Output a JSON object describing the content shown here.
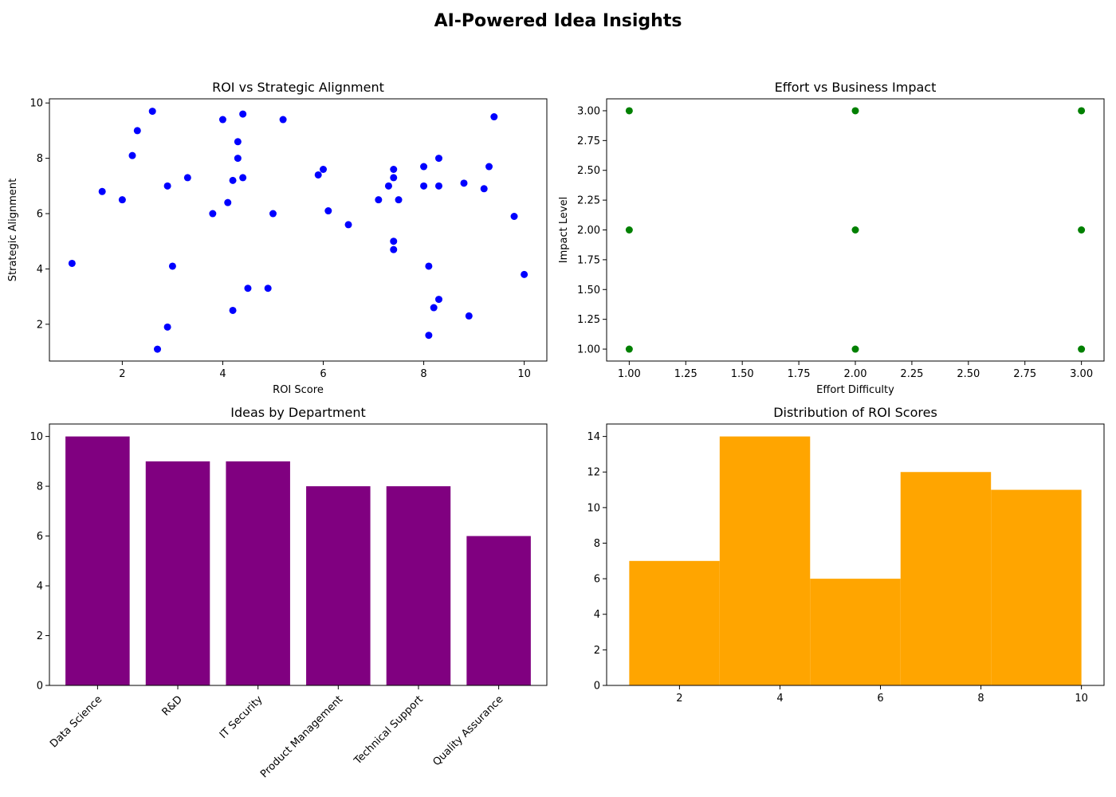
{
  "figure": {
    "title": "AI-Powered Idea Insights"
  },
  "chart_data": [
    {
      "type": "scatter",
      "title": "ROI vs Strategic Alignment",
      "xlabel": "ROI Score",
      "ylabel": "Strategic Alignment",
      "xlim": [
        0.55,
        10.45
      ],
      "ylim": [
        0.67,
        10.15
      ],
      "xticks": [
        2,
        4,
        6,
        8,
        10
      ],
      "yticks": [
        2,
        4,
        6,
        8,
        10
      ],
      "color": "#0000ff",
      "points": [
        [
          1.0,
          4.2
        ],
        [
          1.6,
          6.8
        ],
        [
          2.0,
          6.5
        ],
        [
          2.2,
          8.1
        ],
        [
          2.3,
          9.0
        ],
        [
          2.6,
          9.7
        ],
        [
          2.7,
          1.1
        ],
        [
          2.9,
          1.9
        ],
        [
          2.9,
          7.0
        ],
        [
          3.0,
          4.1
        ],
        [
          3.3,
          7.3
        ],
        [
          3.8,
          6.0
        ],
        [
          4.0,
          9.4
        ],
        [
          4.1,
          6.4
        ],
        [
          4.2,
          2.5
        ],
        [
          4.2,
          7.2
        ],
        [
          4.3,
          8.6
        ],
        [
          4.3,
          8.0
        ],
        [
          4.4,
          9.6
        ],
        [
          4.4,
          7.3
        ],
        [
          4.5,
          3.3
        ],
        [
          4.9,
          3.3
        ],
        [
          5.0,
          6.0
        ],
        [
          5.2,
          9.4
        ],
        [
          5.9,
          7.4
        ],
        [
          6.0,
          7.6
        ],
        [
          6.1,
          6.1
        ],
        [
          6.5,
          5.6
        ],
        [
          7.1,
          6.5
        ],
        [
          7.3,
          7.0
        ],
        [
          7.4,
          7.6
        ],
        [
          7.4,
          7.3
        ],
        [
          7.4,
          5.0
        ],
        [
          7.4,
          4.7
        ],
        [
          7.5,
          6.5
        ],
        [
          8.0,
          7.7
        ],
        [
          8.0,
          7.0
        ],
        [
          8.1,
          4.1
        ],
        [
          8.1,
          1.6
        ],
        [
          8.2,
          2.6
        ],
        [
          8.3,
          8.0
        ],
        [
          8.3,
          7.0
        ],
        [
          8.3,
          2.9
        ],
        [
          8.8,
          7.1
        ],
        [
          8.9,
          2.3
        ],
        [
          9.2,
          6.9
        ],
        [
          9.3,
          7.7
        ],
        [
          9.4,
          9.5
        ],
        [
          9.8,
          5.9
        ],
        [
          10.0,
          3.8
        ]
      ]
    },
    {
      "type": "scatter",
      "title": "Effort vs Business Impact",
      "xlabel": "Effort Difficulty",
      "ylabel": "Impact Level",
      "xlim": [
        0.9,
        3.1
      ],
      "ylim": [
        0.9,
        3.1
      ],
      "xticks": [
        "1.00",
        "1.25",
        "1.50",
        "1.75",
        "2.00",
        "2.25",
        "2.50",
        "2.75",
        "3.00"
      ],
      "yticks": [
        "1.00",
        "1.25",
        "1.50",
        "1.75",
        "2.00",
        "2.25",
        "2.50",
        "2.75",
        "3.00"
      ],
      "color": "#008000",
      "points": [
        [
          1,
          1
        ],
        [
          1,
          2
        ],
        [
          1,
          3
        ],
        [
          2,
          1
        ],
        [
          2,
          2
        ],
        [
          2,
          3
        ],
        [
          3,
          1
        ],
        [
          3,
          2
        ],
        [
          3,
          3
        ]
      ]
    },
    {
      "type": "bar",
      "title": "Ideas by Department",
      "categories": [
        "Data Science",
        "R&D",
        "IT Security",
        "Product Management",
        "Technical Support",
        "Quality Assurance"
      ],
      "values": [
        10,
        9,
        9,
        8,
        8,
        6
      ],
      "ylim": [
        0,
        10.5
      ],
      "yticks": [
        0,
        2,
        4,
        6,
        8,
        10
      ],
      "color": "#800080"
    },
    {
      "type": "histogram",
      "title": "Distribution of ROI Scores",
      "bin_edges": [
        1.0,
        2.8,
        4.6,
        6.4,
        8.2,
        10.0
      ],
      "counts": [
        7,
        14,
        6,
        12,
        11
      ],
      "xlim": [
        0.55,
        10.45
      ],
      "ylim": [
        0,
        14.7
      ],
      "xticks": [
        2,
        4,
        6,
        8,
        10
      ],
      "yticks": [
        0,
        2,
        4,
        6,
        8,
        10,
        12,
        14
      ],
      "color": "#ffa500"
    }
  ]
}
